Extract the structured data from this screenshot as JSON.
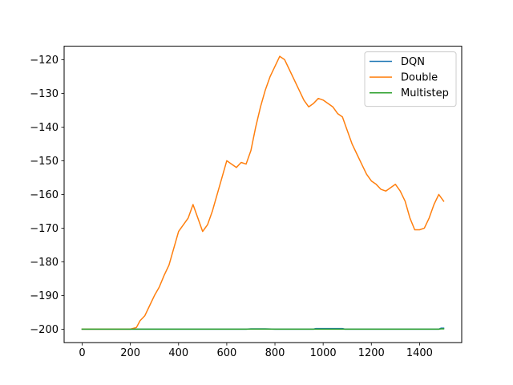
{
  "chart_data": {
    "type": "line",
    "title": "",
    "xlabel": "",
    "ylabel": "",
    "xlim": [
      -75,
      1575
    ],
    "ylim": [
      -204,
      -116
    ],
    "xticks": [
      0,
      200,
      400,
      600,
      800,
      1000,
      1200,
      1400
    ],
    "yticks": [
      -120,
      -130,
      -140,
      -150,
      -160,
      -170,
      -180,
      -190,
      -200
    ],
    "grid": false,
    "legend_position": "top-right",
    "series": [
      {
        "name": "DQN",
        "color": "#1f77b4",
        "x": [
          0,
          100,
          200,
          300,
          400,
          500,
          600,
          680,
          700,
          760,
          800,
          900,
          960,
          970,
          1000,
          1040,
          1080,
          1090,
          1200,
          1300,
          1400,
          1480,
          1490,
          1500
        ],
        "y": [
          -200,
          -200,
          -200,
          -200,
          -200,
          -200,
          -200,
          -200,
          -199.9,
          -199.9,
          -200,
          -200,
          -200,
          -199.8,
          -199.8,
          -199.8,
          -199.8,
          -200,
          -200,
          -200,
          -200,
          -200,
          -199.7,
          -199.7
        ]
      },
      {
        "name": "Double",
        "color": "#ff7f0e",
        "x": [
          0,
          100,
          200,
          225,
          240,
          260,
          280,
          300,
          320,
          340,
          360,
          380,
          400,
          420,
          440,
          460,
          480,
          500,
          520,
          540,
          560,
          580,
          600,
          620,
          640,
          660,
          680,
          700,
          720,
          740,
          760,
          780,
          800,
          820,
          840,
          860,
          880,
          900,
          920,
          940,
          960,
          980,
          1000,
          1020,
          1040,
          1060,
          1080,
          1100,
          1120,
          1140,
          1160,
          1180,
          1200,
          1220,
          1240,
          1260,
          1280,
          1300,
          1320,
          1340,
          1360,
          1380,
          1400,
          1420,
          1440,
          1460,
          1480,
          1500
        ],
        "y": [
          -200,
          -200,
          -200,
          -199.5,
          -197.5,
          -196,
          -193,
          -190,
          -187.5,
          -184,
          -181,
          -176,
          -171,
          -169,
          -167,
          -163,
          -167,
          -171,
          -169,
          -165,
          -160,
          -155,
          -150,
          -151,
          -152,
          -150.5,
          -151,
          -147,
          -140,
          -134,
          -129,
          -125,
          -122,
          -119,
          -120,
          -123,
          -126,
          -129,
          -132,
          -134,
          -133,
          -131.5,
          -132,
          -133,
          -134,
          -136,
          -137,
          -141,
          -145,
          -148,
          -151,
          -154,
          -156,
          -157,
          -158.5,
          -159,
          -158,
          -157,
          -159,
          -162,
          -167,
          -170.5,
          -170.5,
          -170,
          -167,
          -163,
          -160,
          -162
        ]
      },
      {
        "name": "Multistep",
        "color": "#2ca02c",
        "x": [
          0,
          100,
          200,
          300,
          400,
          500,
          600,
          680,
          700,
          760,
          800,
          900,
          1000,
          1100,
          1200,
          1300,
          1400,
          1480,
          1490,
          1500
        ],
        "y": [
          -200,
          -200,
          -200,
          -200,
          -200,
          -200,
          -200,
          -200,
          -199.95,
          -199.95,
          -200,
          -200,
          -200,
          -200,
          -200,
          -200,
          -200,
          -200,
          -199.9,
          -199.9
        ]
      }
    ]
  }
}
